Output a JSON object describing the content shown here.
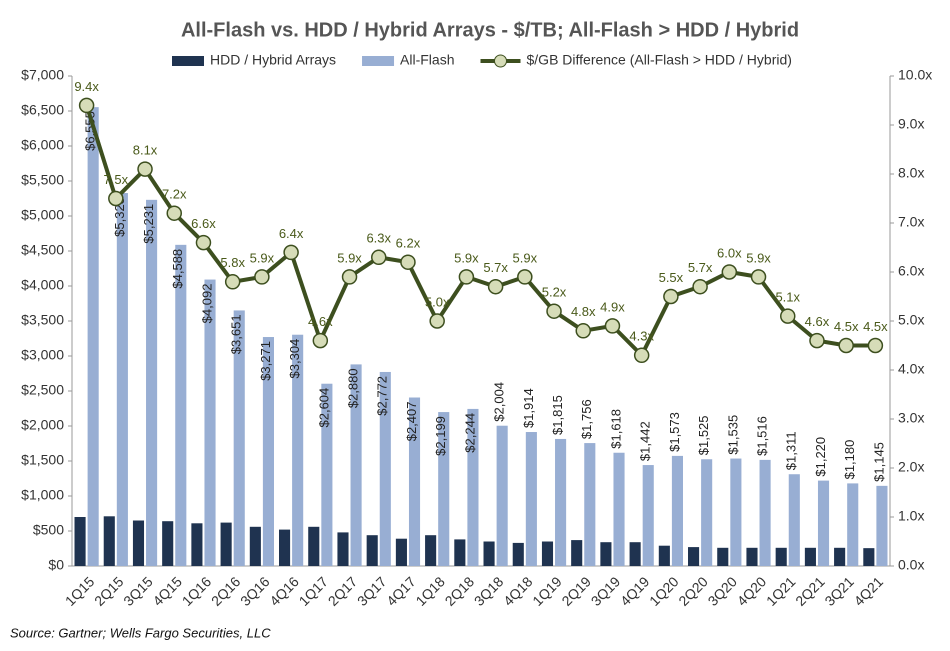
{
  "chart_data": {
    "type": "combo",
    "title": "All-Flash vs. HDD / Hybrid Arrays - $/TB; All-Flash > HDD / Hybrid",
    "source": "Source: Gartner; Wells Fargo Securities, LLC",
    "categories": [
      "1Q15",
      "2Q15",
      "3Q15",
      "4Q15",
      "1Q16",
      "2Q16",
      "3Q16",
      "4Q16",
      "1Q17",
      "2Q17",
      "3Q17",
      "4Q17",
      "1Q18",
      "2Q18",
      "3Q18",
      "4Q18",
      "1Q19",
      "2Q19",
      "3Q19",
      "4Q19",
      "1Q20",
      "2Q20",
      "3Q20",
      "4Q20",
      "1Q21",
      "2Q21",
      "3Q21",
      "4Q21"
    ],
    "series": [
      {
        "name": "HDD / Hybrid Arrays",
        "type": "bar",
        "color": "#1f3350",
        "values": [
          700,
          710,
          650,
          640,
          610,
          620,
          560,
          520,
          560,
          480,
          440,
          390,
          440,
          380,
          350,
          330,
          350,
          370,
          340,
          340,
          290,
          270,
          260,
          260,
          260,
          260,
          260,
          255
        ]
      },
      {
        "name": "All-Flash",
        "type": "bar",
        "color": "#98aed3",
        "values": [
          6555,
          5328,
          5231,
          4588,
          4092,
          3651,
          3271,
          3304,
          2604,
          2880,
          2772,
          2407,
          2199,
          2244,
          2004,
          1914,
          1815,
          1756,
          1618,
          1442,
          1573,
          1525,
          1535,
          1516,
          1311,
          1220,
          1180,
          1145
        ],
        "value_labels": [
          "$6,555",
          "$5,328",
          "$5,231",
          "$4,588",
          "$4,092",
          "$3,651",
          "$3,271",
          "$3,304",
          "$2,604",
          "$2,880",
          "$2,772",
          "$2,407",
          "$2,199",
          "$2,244",
          "$2,004",
          "$1,914",
          "$1,815",
          "$1,756",
          "$1,618",
          "$1,442",
          "$1,573",
          "$1,525",
          "$1,535",
          "$1,516",
          "$1,311",
          "$1,220",
          "$1,180",
          "$1,145"
        ]
      },
      {
        "name": "$/GB Difference (All-Flash > HDD / Hybrid)",
        "type": "line",
        "axis": "y2",
        "color": "#3d4f1f",
        "marker_color": "#d6dcb8",
        "values": [
          9.4,
          7.5,
          8.1,
          7.2,
          6.6,
          5.8,
          5.9,
          6.4,
          4.6,
          5.9,
          6.3,
          6.2,
          5.0,
          5.9,
          5.7,
          5.9,
          5.2,
          4.8,
          4.9,
          4.3,
          5.5,
          5.7,
          6.0,
          5.9,
          5.1,
          4.6,
          4.5,
          4.5
        ],
        "value_labels": [
          "9.4x",
          "7.5x",
          "8.1x",
          "7.2x",
          "6.6x",
          "5.8x",
          "5.9x",
          "6.4x",
          "4.6x",
          "5.9x",
          "6.3x",
          "6.2x",
          "5.0x",
          "5.9x",
          "5.7x",
          "5.9x",
          "5.2x",
          "4.8x",
          "4.9x",
          "4.3x",
          "5.5x",
          "5.7x",
          "6.0x",
          "5.9x",
          "5.1x",
          "4.6x",
          "4.5x",
          "4.5x"
        ]
      }
    ],
    "ylim": [
      0,
      7000
    ],
    "yticks": [
      {
        "value": 0,
        "label": "$0"
      },
      {
        "value": 500,
        "label": "$500"
      },
      {
        "value": 1000,
        "label": "$1,000"
      },
      {
        "value": 1500,
        "label": "$1,500"
      },
      {
        "value": 2000,
        "label": "$2,000"
      },
      {
        "value": 2500,
        "label": "$2,500"
      },
      {
        "value": 3000,
        "label": "$3,000"
      },
      {
        "value": 3500,
        "label": "$3,500"
      },
      {
        "value": 4000,
        "label": "$4,000"
      },
      {
        "value": 4500,
        "label": "$4,500"
      },
      {
        "value": 5000,
        "label": "$5,000"
      },
      {
        "value": 5500,
        "label": "$5,500"
      },
      {
        "value": 6000,
        "label": "$6,000"
      },
      {
        "value": 6500,
        "label": "$6,500"
      },
      {
        "value": 7000,
        "label": "$7,000"
      }
    ],
    "y2lim": [
      0,
      10
    ],
    "y2ticks": [
      {
        "value": 0,
        "label": "0.0x"
      },
      {
        "value": 1,
        "label": "1.0x"
      },
      {
        "value": 2,
        "label": "2.0x"
      },
      {
        "value": 3,
        "label": "3.0x"
      },
      {
        "value": 4,
        "label": "4.0x"
      },
      {
        "value": 5,
        "label": "5.0x"
      },
      {
        "value": 6,
        "label": "6.0x"
      },
      {
        "value": 7,
        "label": "7.0x"
      },
      {
        "value": 8,
        "label": "8.0x"
      },
      {
        "value": 9,
        "label": "9.0x"
      },
      {
        "value": 10,
        "label": "10.0x"
      }
    ]
  }
}
